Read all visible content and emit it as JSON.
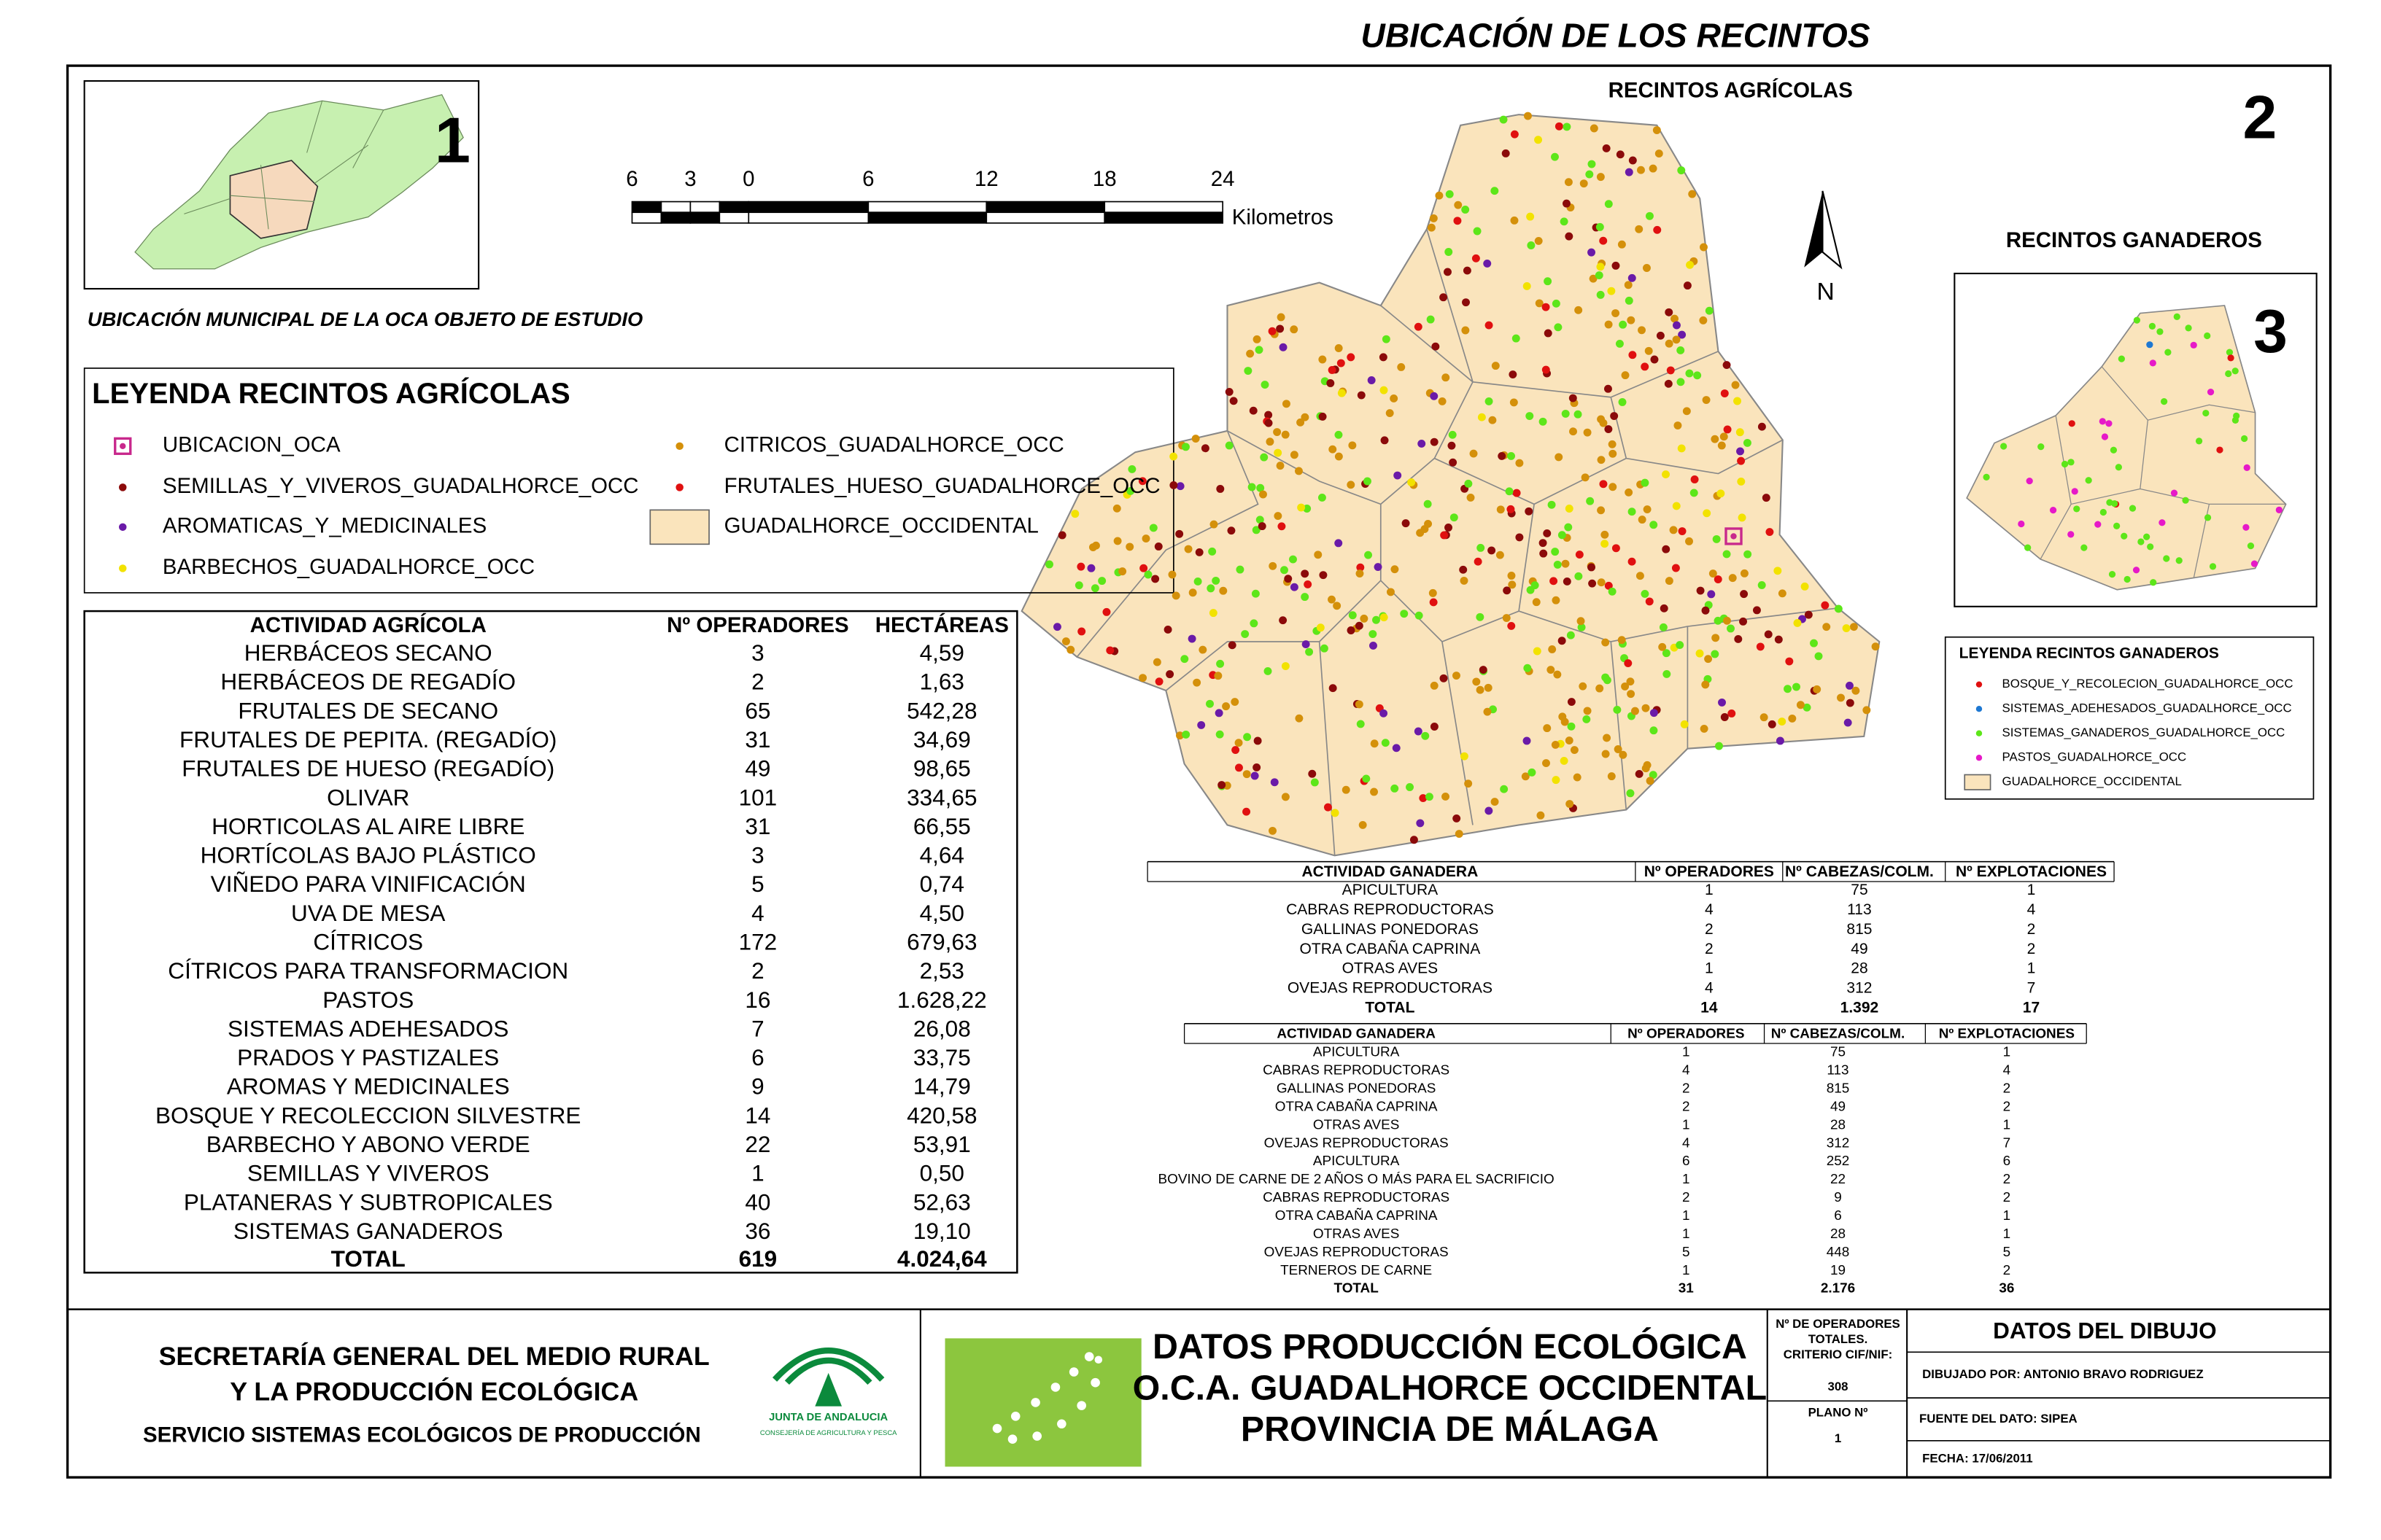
{
  "title": "UBICACIÓN DE LOS RECINTOS",
  "inset_municipal": {
    "number": "1",
    "caption": "UBICACIÓN MUNICIPAL DE LA OCA OBJETO DE ESTUDIO"
  },
  "scale_bar": {
    "labels": [
      "6",
      "3",
      "0",
      "6",
      "12",
      "18",
      "24"
    ],
    "unit": "Kilometros"
  },
  "north_label": "N",
  "map_agricola": {
    "title": "RECINTOS AGRÍCOLAS",
    "number": "2"
  },
  "map_ganadero": {
    "title": "RECINTOS GANADEROS",
    "number": "3"
  },
  "legend_agricola": {
    "title": "LEYENDA RECINTOS AGRÍCOLAS",
    "items": [
      {
        "label": "UBICACION_OCA",
        "color": "#c8288c",
        "symbol": "target"
      },
      {
        "label": "SEMILLAS_Y_VIVEROS_GUADALHORCE_OCC",
        "color": "#8b0a0a",
        "symbol": "dot"
      },
      {
        "label": "AROMATICAS_Y_MEDICINALES",
        "color": "#6a1aa8",
        "symbol": "dot"
      },
      {
        "label": "BARBECHOS_GUADALHORCE_OCC",
        "color": "#f2e200",
        "symbol": "dot"
      },
      {
        "label": "CITRICOS_GUADALHORCE_OCC",
        "color": "#d4900a",
        "symbol": "dot"
      },
      {
        "label": "FRUTALES_HUESO_GUADALHORCE_OCC",
        "color": "#e01010",
        "symbol": "dot"
      },
      {
        "label": "GUADALHORCE_OCCIDENTAL",
        "color": "#fae4bc",
        "symbol": "area"
      }
    ]
  },
  "legend_ganadero": {
    "title": "LEYENDA RECINTOS GANADEROS",
    "items": [
      {
        "label": "BOSQUE_Y_RECOLECION_GUADALHORCE_OCC",
        "color": "#e01010",
        "symbol": "dot"
      },
      {
        "label": "SISTEMAS_ADEHESADOS_GUADALHORCE_OCC",
        "color": "#1e78d2",
        "symbol": "dot"
      },
      {
        "label": "SISTEMAS_GANADEROS_GUADALHORCE_OCC",
        "color": "#5de619",
        "symbol": "dot"
      },
      {
        "label": "PASTOS_GUADALHORCE_OCC",
        "color": "#e619c8",
        "symbol": "dot"
      },
      {
        "label": "GUADALHORCE_OCCIDENTAL",
        "color": "#fae4bc",
        "symbol": "area"
      }
    ]
  },
  "table_agricola": {
    "header": [
      "ACTIVIDAD AGRÍCOLA",
      "Nº OPERADORES",
      "HECTÁREAS"
    ],
    "rows": [
      [
        "HERBÁCEOS SECANO",
        "3",
        "4,59"
      ],
      [
        "HERBÁCEOS DE REGADÍO",
        "2",
        "1,63"
      ],
      [
        "FRUTALES DE SECANO",
        "65",
        "542,28"
      ],
      [
        "FRUTALES DE PEPITA. (REGADÍO)",
        "31",
        "34,69"
      ],
      [
        "FRUTALES DE HUESO (REGADÍO)",
        "49",
        "98,65"
      ],
      [
        "OLIVAR",
        "101",
        "334,65"
      ],
      [
        "HORTICOLAS AL AIRE LIBRE",
        "31",
        "66,55"
      ],
      [
        "HORTÍCOLAS BAJO PLÁSTICO",
        "3",
        "4,64"
      ],
      [
        "VIÑEDO PARA VINIFICACIÓN",
        "5",
        "0,74"
      ],
      [
        "UVA DE MESA",
        "4",
        "4,50"
      ],
      [
        "CÍTRICOS",
        "172",
        "679,63"
      ],
      [
        "CÍTRICOS PARA TRANSFORMACION",
        "2",
        "2,53"
      ],
      [
        "PASTOS",
        "16",
        "1.628,22"
      ],
      [
        "SISTEMAS ADEHESADOS",
        "7",
        "26,08"
      ],
      [
        "PRADOS Y PASTIZALES",
        "6",
        "33,75"
      ],
      [
        "AROMAS Y MEDICINALES",
        "9",
        "14,79"
      ],
      [
        "BOSQUE Y RECOLECCION SILVESTRE",
        "14",
        "420,58"
      ],
      [
        "BARBECHO Y ABONO VERDE",
        "22",
        "53,91"
      ],
      [
        "SEMILLAS Y VIVEROS",
        "1",
        "0,50"
      ],
      [
        "PLATANERAS Y SUBTROPICALES",
        "40",
        "52,63"
      ],
      [
        "SISTEMAS GANADEROS",
        "36",
        "19,10"
      ]
    ],
    "total": [
      "TOTAL",
      "619",
      "4.024,64"
    ]
  },
  "table_ganadera_1": {
    "header": [
      "ACTIVIDAD GANADERA",
      "Nº OPERADORES",
      "Nº CABEZAS/COLM.",
      "Nº EXPLOTACIONES"
    ],
    "rows": [
      [
        "APICULTURA",
        "1",
        "75",
        "1"
      ],
      [
        "CABRAS REPRODUCTORAS",
        "4",
        "113",
        "4"
      ],
      [
        "GALLINAS PONEDORAS",
        "2",
        "815",
        "2"
      ],
      [
        "OTRA CABAÑA CAPRINA",
        "2",
        "49",
        "2"
      ],
      [
        "OTRAS AVES",
        "1",
        "28",
        "1"
      ],
      [
        "OVEJAS REPRODUCTORAS",
        "4",
        "312",
        "7"
      ]
    ],
    "total": [
      "TOTAL",
      "14",
      "1.392",
      "17"
    ]
  },
  "table_ganadera_2": {
    "header": [
      "ACTIVIDAD GANADERA",
      "Nº OPERADORES",
      "Nº CABEZAS/COLM.",
      "Nº EXPLOTACIONES"
    ],
    "rows": [
      [
        "APICULTURA",
        "1",
        "75",
        "1"
      ],
      [
        "CABRAS REPRODUCTORAS",
        "4",
        "113",
        "4"
      ],
      [
        "GALLINAS PONEDORAS",
        "2",
        "815",
        "2"
      ],
      [
        "OTRA CABAÑA CAPRINA",
        "2",
        "49",
        "2"
      ],
      [
        "OTRAS AVES",
        "1",
        "28",
        "1"
      ],
      [
        "OVEJAS REPRODUCTORAS",
        "4",
        "312",
        "7"
      ],
      [
        "APICULTURA",
        "6",
        "252",
        "6"
      ],
      [
        "BOVINO DE CARNE DE 2 AÑOS O MÁS PARA EL SACRIFICIO",
        "1",
        "22",
        "2"
      ],
      [
        "CABRAS REPRODUCTORAS",
        "2",
        "9",
        "2"
      ],
      [
        "OTRA CABAÑA CAPRINA",
        "1",
        "6",
        "1"
      ],
      [
        "OTRAS AVES",
        "1",
        "28",
        "1"
      ],
      [
        "OVEJAS REPRODUCTORAS",
        "5",
        "448",
        "5"
      ],
      [
        "TERNEROS DE CARNE",
        "1",
        "19",
        "2"
      ]
    ],
    "total": [
      "TOTAL",
      "31",
      "2.176",
      "36"
    ]
  },
  "organization": {
    "lines": [
      "SECRETARÍA GENERAL DEL MEDIO RURAL",
      "Y LA PRODUCCIÓN ECOLÓGICA"
    ],
    "service": "SERVICIO SISTEMAS ECOLÓGICOS DE PRODUCCIÓN"
  },
  "logo": {
    "name": "JUNTA DE ANDALUCIA",
    "department": "CONSEJERÍA DE AGRICULTURA Y PESCA"
  },
  "heading": [
    "DATOS PRODUCCIÓN ECOLÓGICA",
    "O.C.A. GUADALHORCE OCCIDENTAL",
    "PROVINCIA DE MÁLAGA"
  ],
  "operators": {
    "label": [
      "Nº DE OPERADORES",
      "TOTALES.",
      "CRITERIO CIF/NIF:"
    ],
    "value": "308"
  },
  "plan": {
    "label": "PLANO Nº",
    "value": "1"
  },
  "drawing": {
    "title": "DATOS DEL DIBUJO",
    "author": "DIBUJADO POR: ANTONIO BRAVO RODRIGUEZ",
    "source": "FUENTE DEL DATO: SIPEA",
    "date": "FECHA: 17/06/2011"
  }
}
